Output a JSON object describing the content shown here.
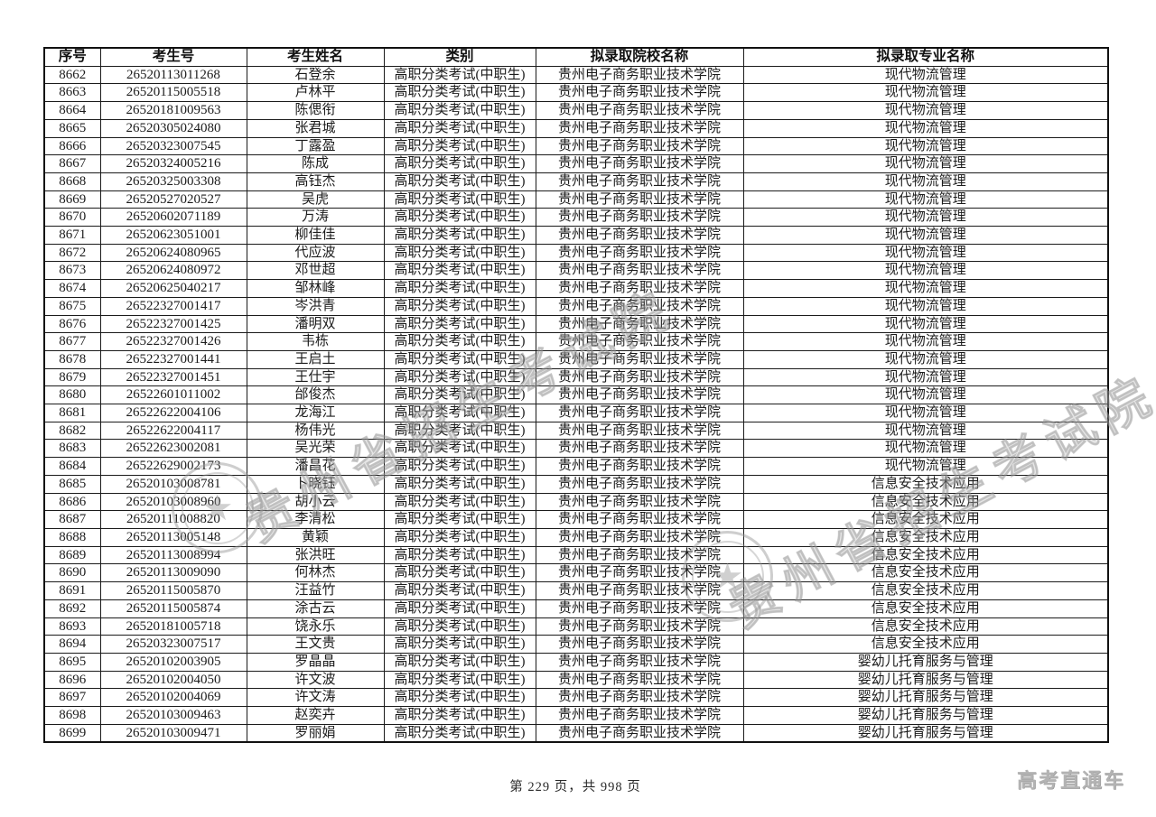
{
  "table": {
    "headers": [
      "序号",
      "考生号",
      "考生姓名",
      "类别",
      "拟录取院校名称",
      "拟录取专业名称"
    ],
    "rows": [
      [
        "8662",
        "26520113011268",
        "石登余",
        "高职分类考试(中职生)",
        "贵州电子商务职业技术学院",
        "现代物流管理"
      ],
      [
        "8663",
        "26520115005518",
        "卢林平",
        "高职分类考试(中职生)",
        "贵州电子商务职业技术学院",
        "现代物流管理"
      ],
      [
        "8664",
        "26520181009563",
        "陈偲衔",
        "高职分类考试(中职生)",
        "贵州电子商务职业技术学院",
        "现代物流管理"
      ],
      [
        "8665",
        "26520305024080",
        "张君城",
        "高职分类考试(中职生)",
        "贵州电子商务职业技术学院",
        "现代物流管理"
      ],
      [
        "8666",
        "26520323007545",
        "丁露盈",
        "高职分类考试(中职生)",
        "贵州电子商务职业技术学院",
        "现代物流管理"
      ],
      [
        "8667",
        "26520324005216",
        "陈成",
        "高职分类考试(中职生)",
        "贵州电子商务职业技术学院",
        "现代物流管理"
      ],
      [
        "8668",
        "26520325003308",
        "高钰杰",
        "高职分类考试(中职生)",
        "贵州电子商务职业技术学院",
        "现代物流管理"
      ],
      [
        "8669",
        "26520527020527",
        "吴虎",
        "高职分类考试(中职生)",
        "贵州电子商务职业技术学院",
        "现代物流管理"
      ],
      [
        "8670",
        "26520602071189",
        "万涛",
        "高职分类考试(中职生)",
        "贵州电子商务职业技术学院",
        "现代物流管理"
      ],
      [
        "8671",
        "26520623051001",
        "柳佳佳",
        "高职分类考试(中职生)",
        "贵州电子商务职业技术学院",
        "现代物流管理"
      ],
      [
        "8672",
        "26520624080965",
        "代应波",
        "高职分类考试(中职生)",
        "贵州电子商务职业技术学院",
        "现代物流管理"
      ],
      [
        "8673",
        "26520624080972",
        "邓世超",
        "高职分类考试(中职生)",
        "贵州电子商务职业技术学院",
        "现代物流管理"
      ],
      [
        "8674",
        "26520625040217",
        "邹林峰",
        "高职分类考试(中职生)",
        "贵州电子商务职业技术学院",
        "现代物流管理"
      ],
      [
        "8675",
        "26522327001417",
        "岑洪青",
        "高职分类考试(中职生)",
        "贵州电子商务职业技术学院",
        "现代物流管理"
      ],
      [
        "8676",
        "26522327001425",
        "潘明双",
        "高职分类考试(中职生)",
        "贵州电子商务职业技术学院",
        "现代物流管理"
      ],
      [
        "8677",
        "26522327001426",
        "韦栋",
        "高职分类考试(中职生)",
        "贵州电子商务职业技术学院",
        "现代物流管理"
      ],
      [
        "8678",
        "26522327001441",
        "王启土",
        "高职分类考试(中职生)",
        "贵州电子商务职业技术学院",
        "现代物流管理"
      ],
      [
        "8679",
        "26522327001451",
        "王仕宇",
        "高职分类考试(中职生)",
        "贵州电子商务职业技术学院",
        "现代物流管理"
      ],
      [
        "8680",
        "26522601011002",
        "邰俊杰",
        "高职分类考试(中职生)",
        "贵州电子商务职业技术学院",
        "现代物流管理"
      ],
      [
        "8681",
        "26522622004106",
        "龙海江",
        "高职分类考试(中职生)",
        "贵州电子商务职业技术学院",
        "现代物流管理"
      ],
      [
        "8682",
        "26522622004117",
        "杨伟光",
        "高职分类考试(中职生)",
        "贵州电子商务职业技术学院",
        "现代物流管理"
      ],
      [
        "8683",
        "26522623002081",
        "吴光荣",
        "高职分类考试(中职生)",
        "贵州电子商务职业技术学院",
        "现代物流管理"
      ],
      [
        "8684",
        "26522629002173",
        "潘昌花",
        "高职分类考试(中职生)",
        "贵州电子商务职业技术学院",
        "现代物流管理"
      ],
      [
        "8685",
        "26520103008781",
        "卜晓钰",
        "高职分类考试(中职生)",
        "贵州电子商务职业技术学院",
        "信息安全技术应用"
      ],
      [
        "8686",
        "26520103008960",
        "胡小云",
        "高职分类考试(中职生)",
        "贵州电子商务职业技术学院",
        "信息安全技术应用"
      ],
      [
        "8687",
        "26520111008820",
        "李清松",
        "高职分类考试(中职生)",
        "贵州电子商务职业技术学院",
        "信息安全技术应用"
      ],
      [
        "8688",
        "26520113005148",
        "黄颖",
        "高职分类考试(中职生)",
        "贵州电子商务职业技术学院",
        "信息安全技术应用"
      ],
      [
        "8689",
        "26520113008994",
        "张洪旺",
        "高职分类考试(中职生)",
        "贵州电子商务职业技术学院",
        "信息安全技术应用"
      ],
      [
        "8690",
        "26520113009090",
        "何林杰",
        "高职分类考试(中职生)",
        "贵州电子商务职业技术学院",
        "信息安全技术应用"
      ],
      [
        "8691",
        "26520115005870",
        "汪益竹",
        "高职分类考试(中职生)",
        "贵州电子商务职业技术学院",
        "信息安全技术应用"
      ],
      [
        "8692",
        "26520115005874",
        "涂古云",
        "高职分类考试(中职生)",
        "贵州电子商务职业技术学院",
        "信息安全技术应用"
      ],
      [
        "8693",
        "26520181005718",
        "饶永乐",
        "高职分类考试(中职生)",
        "贵州电子商务职业技术学院",
        "信息安全技术应用"
      ],
      [
        "8694",
        "26520323007517",
        "王文贵",
        "高职分类考试(中职生)",
        "贵州电子商务职业技术学院",
        "信息安全技术应用"
      ],
      [
        "8695",
        "26520102003905",
        "罗晶晶",
        "高职分类考试(中职生)",
        "贵州电子商务职业技术学院",
        "婴幼儿托育服务与管理"
      ],
      [
        "8696",
        "26520102004050",
        "许文波",
        "高职分类考试(中职生)",
        "贵州电子商务职业技术学院",
        "婴幼儿托育服务与管理"
      ],
      [
        "8697",
        "26520102004069",
        "许文涛",
        "高职分类考试(中职生)",
        "贵州电子商务职业技术学院",
        "婴幼儿托育服务与管理"
      ],
      [
        "8698",
        "26520103009463",
        "赵奕卉",
        "高职分类考试(中职生)",
        "贵州电子商务职业技术学院",
        "婴幼儿托育服务与管理"
      ],
      [
        "8699",
        "26520103009471",
        "罗丽娟",
        "高职分类考试(中职生)",
        "贵州电子商务职业技术学院",
        "婴幼儿托育服务与管理"
      ]
    ]
  },
  "watermark": {
    "text": "贵州省招生考试院",
    "star_glyph": "★"
  },
  "footer": {
    "page_text": "第 229 页，共 998 页",
    "brand": "高考直通车"
  }
}
